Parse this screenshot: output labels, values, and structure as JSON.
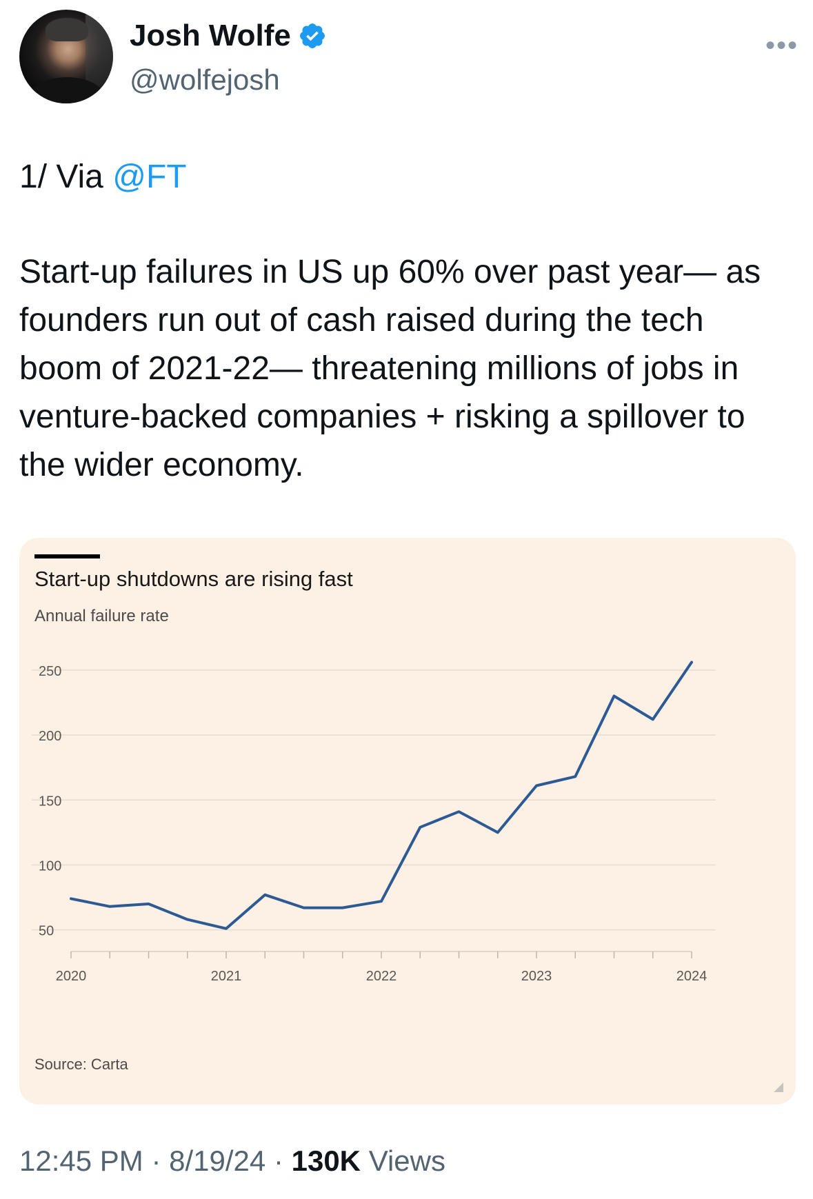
{
  "user": {
    "name": "Josh Wolfe",
    "handle": "@wolfejosh"
  },
  "tweet": {
    "prefix": "1/ Via ",
    "mention": "@FT",
    "body": "Start-up failures in US up 60% over past year— as founders run out of cash raised during the tech boom of 2021-22— threatening millions of jobs in venture-backed companies + risking a spillover to the wider economy."
  },
  "meta": {
    "time": "12:45 PM",
    "sep1": "·",
    "date": "8/19/24",
    "sep2": "·",
    "views_count": "130K",
    "views_label": "Views"
  },
  "colors": {
    "card_bg": "#fdf1e6",
    "line": "#2e5a94",
    "link": "#1d9bf0",
    "verified": "#1d9bf0"
  },
  "chart_data": {
    "type": "line",
    "title": "Start-up shutdowns are rising fast",
    "subtitle": "Annual failure rate",
    "source": "Source: Carta",
    "x_tick_labels": [
      "2020",
      "2021",
      "2022",
      "2023",
      "2024"
    ],
    "y_tick_labels": [
      "250",
      "200",
      "150",
      "100",
      "50"
    ],
    "y_ticks": [
      250,
      200,
      150,
      100,
      50
    ],
    "ylim": [
      27,
      260
    ],
    "xlim": [
      2020,
      2024
    ],
    "grid": true,
    "series": [
      {
        "x": [
          2020.0,
          2020.25,
          2020.5,
          2020.75,
          2021.0,
          2021.25,
          2021.5,
          2021.75,
          2022.0,
          2022.25,
          2022.5,
          2022.75,
          2023.0,
          2023.25,
          2023.5,
          2023.75,
          2024.0
        ],
        "values": [
          74,
          68,
          70,
          58,
          51,
          77,
          67,
          67,
          72,
          129,
          141,
          125,
          161,
          168,
          230,
          212,
          256
        ]
      }
    ]
  }
}
